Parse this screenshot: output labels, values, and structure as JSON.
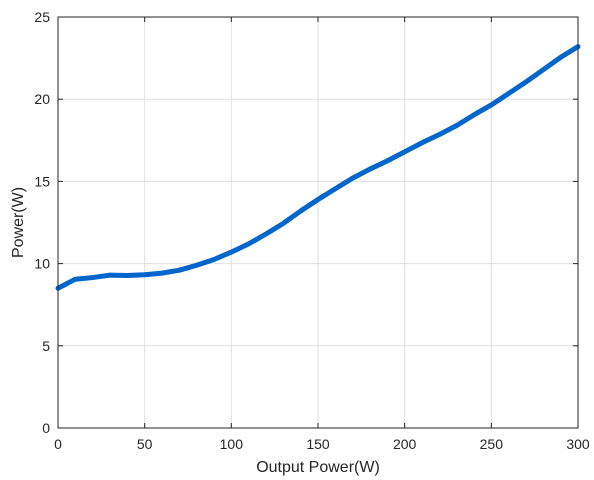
{
  "chart_data": {
    "type": "line",
    "title": "",
    "xlabel": "Output Power(W)",
    "ylabel": "Power(W)",
    "xlim": [
      0,
      300
    ],
    "ylim": [
      0,
      25
    ],
    "xticks": [
      0,
      50,
      100,
      150,
      200,
      250,
      300
    ],
    "yticks": [
      0,
      5,
      10,
      15,
      20,
      25
    ],
    "grid": true,
    "series": [
      {
        "color": "#0066cc",
        "x": [
          0,
          10,
          20,
          30,
          40,
          50,
          60,
          70,
          80,
          90,
          100,
          110,
          120,
          130,
          140,
          150,
          160,
          170,
          180,
          190,
          200,
          210,
          220,
          230,
          240,
          250,
          260,
          270,
          280,
          290,
          300
        ],
        "y": [
          8.5,
          9.05,
          9.15,
          9.3,
          9.28,
          9.32,
          9.42,
          9.6,
          9.9,
          10.25,
          10.7,
          11.2,
          11.8,
          12.45,
          13.2,
          13.9,
          14.55,
          15.2,
          15.75,
          16.25,
          16.8,
          17.35,
          17.85,
          18.4,
          19.05,
          19.65,
          20.35,
          21.05,
          21.8,
          22.55,
          23.2
        ]
      }
    ]
  }
}
